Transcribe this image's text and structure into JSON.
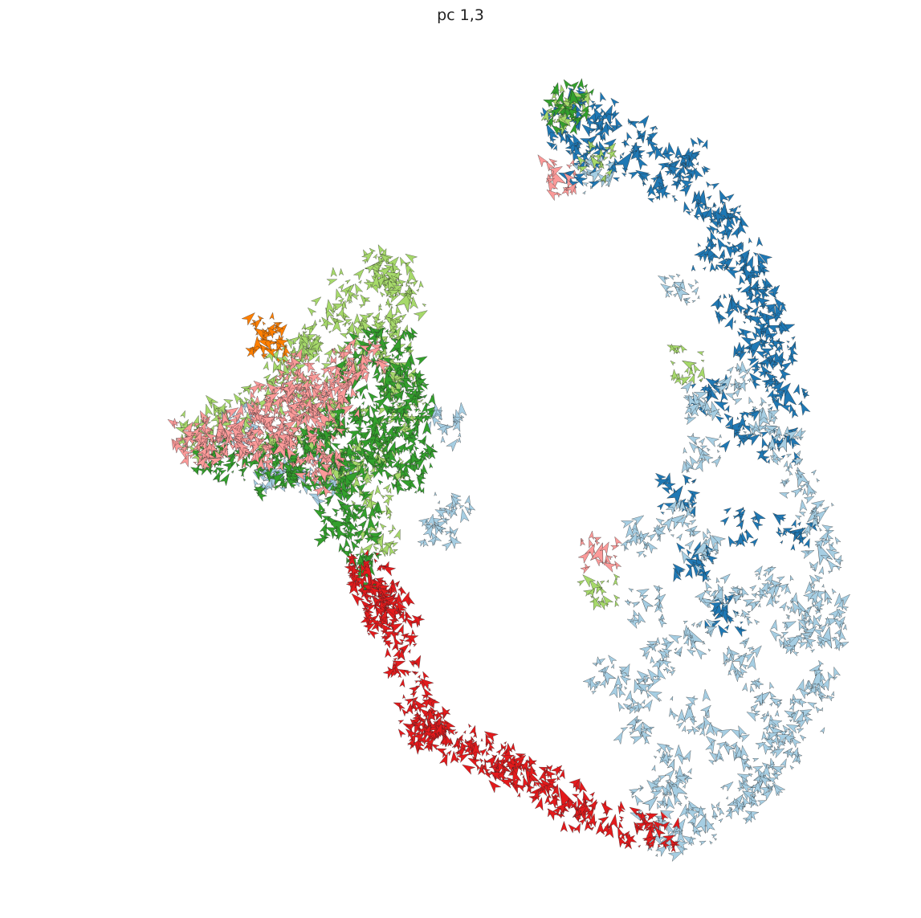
{
  "chart_data": {
    "type": "scatter",
    "title": "pc 1,3",
    "xlabel": "",
    "ylabel": "",
    "grid": false,
    "axes_visible": false,
    "marker": "arrow",
    "xlim": [
      -10,
      10
    ],
    "ylim": [
      -10,
      10
    ],
    "series": [
      {
        "color": "#1f78b4",
        "points": [
          [
            2.6,
            8.6
          ],
          [
            3.4,
            8.4
          ],
          [
            4.2,
            7.9
          ],
          [
            4.9,
            7.2
          ],
          [
            5.6,
            6.4
          ],
          [
            6.2,
            5.6
          ],
          [
            6.7,
            4.6
          ],
          [
            7.1,
            3.6
          ],
          [
            7.4,
            2.6
          ],
          [
            7.6,
            1.7
          ],
          [
            5.3,
            7.4
          ],
          [
            6.1,
            6.1
          ],
          [
            6.6,
            5.0
          ],
          [
            7.0,
            4.0
          ],
          [
            7.3,
            3.0
          ],
          [
            3.0,
            7.8
          ],
          [
            2.3,
            8.0
          ],
          [
            2.8,
            7.2
          ],
          [
            3.8,
            7.3
          ],
          [
            4.6,
            6.8
          ],
          [
            5.8,
            5.1
          ],
          [
            6.3,
            3.9
          ],
          [
            6.8,
            2.9
          ],
          [
            7.2,
            2.2
          ],
          [
            7.4,
            0.6
          ],
          [
            5.0,
            -0.6
          ],
          [
            6.5,
            -1.3
          ],
          [
            5.4,
            -2.2
          ],
          [
            6.1,
            -3.4
          ],
          [
            5.8,
            1.8
          ],
          [
            6.4,
            1.0
          ],
          [
            7.8,
            -1.5
          ]
        ]
      },
      {
        "color": "#a6cee3",
        "points": [
          [
            6.4,
            2.0
          ],
          [
            7.0,
            1.2
          ],
          [
            7.5,
            0.6
          ],
          [
            7.9,
            -0.2
          ],
          [
            8.2,
            -1.1
          ],
          [
            8.4,
            -2.0
          ],
          [
            8.5,
            -3.0
          ],
          [
            8.5,
            -4.0
          ],
          [
            8.3,
            -5.0
          ],
          [
            8.0,
            -5.8
          ],
          [
            7.6,
            -6.7
          ],
          [
            7.0,
            -7.3
          ],
          [
            6.4,
            -7.9
          ],
          [
            5.6,
            -8.4
          ],
          [
            4.8,
            -8.8
          ],
          [
            6.0,
            -3.0
          ],
          [
            6.5,
            -4.5
          ],
          [
            7.0,
            -5.4
          ],
          [
            5.3,
            -5.8
          ],
          [
            6.2,
            -6.6
          ],
          [
            7.3,
            -2.7
          ],
          [
            7.7,
            -4.1
          ],
          [
            5.0,
            -1.2
          ],
          [
            5.6,
            -1.9
          ],
          [
            4.9,
            -7.0
          ],
          [
            4.7,
            -4.4
          ],
          [
            3.4,
            -4.9
          ],
          [
            4.2,
            -5.2
          ],
          [
            5.4,
            -4.0
          ],
          [
            6.8,
            -3.2
          ],
          [
            4.2,
            -1.6
          ],
          [
            4.3,
            -3.2
          ],
          [
            5.5,
            1.6
          ],
          [
            5.6,
            0.4
          ],
          [
            4.4,
            -7.9
          ],
          [
            5.0,
            -7.6
          ],
          [
            4.0,
            -6.0
          ],
          [
            6.9,
            -7.5
          ],
          [
            7.3,
            -6.2
          ],
          [
            7.9,
            -3.3
          ],
          [
            5.1,
            4.2
          ],
          [
            3.1,
            7.0
          ],
          [
            -5.2,
            1.1
          ],
          [
            -3.7,
            -0.1
          ],
          [
            -4.4,
            -0.2
          ],
          [
            -3.0,
            -0.4
          ],
          [
            -0.4,
            1.0
          ],
          [
            -0.2,
            -1.0
          ],
          [
            -0.5,
            -1.4
          ]
        ]
      },
      {
        "color": "#a6d96a",
        "points": [
          [
            -4.2,
            2.3
          ],
          [
            -3.7,
            3.0
          ],
          [
            -3.1,
            3.7
          ],
          [
            -2.6,
            4.3
          ],
          [
            -2.0,
            4.8
          ],
          [
            -1.6,
            4.5
          ],
          [
            -1.3,
            4.0
          ],
          [
            -1.6,
            3.5
          ],
          [
            -2.3,
            3.4
          ],
          [
            -3.5,
            2.8
          ],
          [
            -4.0,
            1.8
          ],
          [
            -4.8,
            1.5
          ],
          [
            -5.5,
            1.2
          ],
          [
            -6.1,
            0.9
          ],
          [
            -6.0,
            0.7
          ],
          [
            -3.0,
            1.3
          ],
          [
            -2.0,
            1.0
          ],
          [
            -1.6,
            2.5
          ],
          [
            -1.5,
            1.9
          ],
          [
            -2.7,
            2.5
          ],
          [
            -3.3,
            1.8
          ],
          [
            -2.4,
            0.1
          ],
          [
            -2.9,
            -0.1
          ],
          [
            -1.3,
            1.3
          ],
          [
            -1.8,
            0.2
          ],
          [
            -3.5,
            0.6
          ],
          [
            -4.4,
            0.7
          ],
          [
            -2.1,
            -0.8
          ],
          [
            -1.9,
            -1.7
          ],
          [
            2.5,
            8.7
          ],
          [
            2.3,
            8.3
          ],
          [
            3.1,
            7.3
          ],
          [
            5.3,
            2.5
          ],
          [
            3.2,
            -2.8
          ],
          [
            -1.6,
            4.6
          ]
        ]
      },
      {
        "color": "#33a02c",
        "points": [
          [
            -1.7,
            2.1
          ],
          [
            -1.4,
            1.4
          ],
          [
            -1.2,
            0.8
          ],
          [
            -1.6,
            0.5
          ],
          [
            -2.1,
            0.7
          ],
          [
            -2.6,
            0.4
          ],
          [
            -3.1,
            0.0
          ],
          [
            -3.6,
            0.5
          ],
          [
            -4.1,
            0.4
          ],
          [
            -4.7,
            0.2
          ],
          [
            -5.4,
            0.1
          ],
          [
            -5.8,
            0.3
          ],
          [
            -2.8,
            -0.8
          ],
          [
            -2.9,
            -1.3
          ],
          [
            -2.5,
            -1.8
          ],
          [
            -2.3,
            -2.4
          ],
          [
            -1.9,
            0.1
          ],
          [
            -1.3,
            -0.1
          ],
          [
            -1.5,
            2.9
          ],
          [
            -1.9,
            1.2
          ],
          [
            -2.4,
            1.3
          ],
          [
            -2.8,
            1.0
          ],
          [
            -2.5,
            2.1
          ],
          [
            -2.2,
            2.9
          ],
          [
            -1.3,
            2.2
          ],
          [
            -1.1,
            1.7
          ],
          [
            -3.9,
            -0.1
          ],
          [
            -4.3,
            -0.2
          ],
          [
            -2.3,
            -1.3
          ],
          [
            -2.6,
            -0.2
          ],
          [
            -1.1,
            0.3
          ],
          [
            -3.3,
            0.8
          ],
          [
            2.4,
            8.5
          ],
          [
            2.6,
            8.8
          ]
        ]
      },
      {
        "color": "#fb9a99",
        "points": [
          [
            -6.0,
            0.6
          ],
          [
            -5.6,
            0.9
          ],
          [
            -5.2,
            1.0
          ],
          [
            -4.8,
            0.6
          ],
          [
            -4.3,
            0.8
          ],
          [
            -3.8,
            1.2
          ],
          [
            -3.4,
            1.5
          ],
          [
            -3.0,
            2.0
          ],
          [
            -2.6,
            2.5
          ],
          [
            -2.2,
            2.6
          ],
          [
            -3.6,
            1.8
          ],
          [
            -3.9,
            1.5
          ],
          [
            -4.6,
            1.2
          ],
          [
            -5.1,
            0.5
          ],
          [
            -5.8,
            0.5
          ],
          [
            -6.3,
            0.8
          ],
          [
            -4.2,
            0.5
          ],
          [
            -3.5,
            0.3
          ],
          [
            -3.8,
            2.3
          ],
          [
            -2.8,
            1.7
          ],
          [
            -3.2,
            1.2
          ],
          [
            -4.5,
            1.6
          ],
          [
            -4.0,
            1.9
          ],
          [
            2.2,
            6.9
          ],
          [
            3.2,
            -2.0
          ],
          [
            -3.2,
            -0.1
          ]
        ]
      },
      {
        "color": "#e31a1c",
        "points": [
          [
            -2.2,
            -2.4
          ],
          [
            -2.1,
            -2.7
          ],
          [
            -1.9,
            -2.9
          ],
          [
            -1.8,
            -3.2
          ],
          [
            -1.6,
            -3.4
          ],
          [
            -1.4,
            -3.8
          ],
          [
            -1.8,
            -3.5
          ],
          [
            -2.0,
            -3.1
          ],
          [
            -1.4,
            -4.4
          ],
          [
            -1.1,
            -5.2
          ],
          [
            -1.0,
            -5.9
          ],
          [
            -0.8,
            -6.2
          ],
          [
            -0.6,
            -6.1
          ],
          [
            -0.4,
            -6.4
          ],
          [
            -0.1,
            -6.5
          ],
          [
            0.3,
            -6.7
          ],
          [
            0.7,
            -6.9
          ],
          [
            1.0,
            -7.1
          ],
          [
            1.2,
            -7.0
          ],
          [
            1.6,
            -7.3
          ],
          [
            2.0,
            -7.5
          ],
          [
            2.4,
            -7.8
          ],
          [
            2.8,
            -8.1
          ],
          [
            3.3,
            -8.3
          ],
          [
            4.1,
            -8.5
          ],
          [
            4.6,
            -8.6
          ]
        ]
      },
      {
        "color": "#ff7f00",
        "points": [
          [
            -4.6,
            3.2
          ],
          [
            -4.5,
            3.0
          ]
        ]
      }
    ]
  }
}
